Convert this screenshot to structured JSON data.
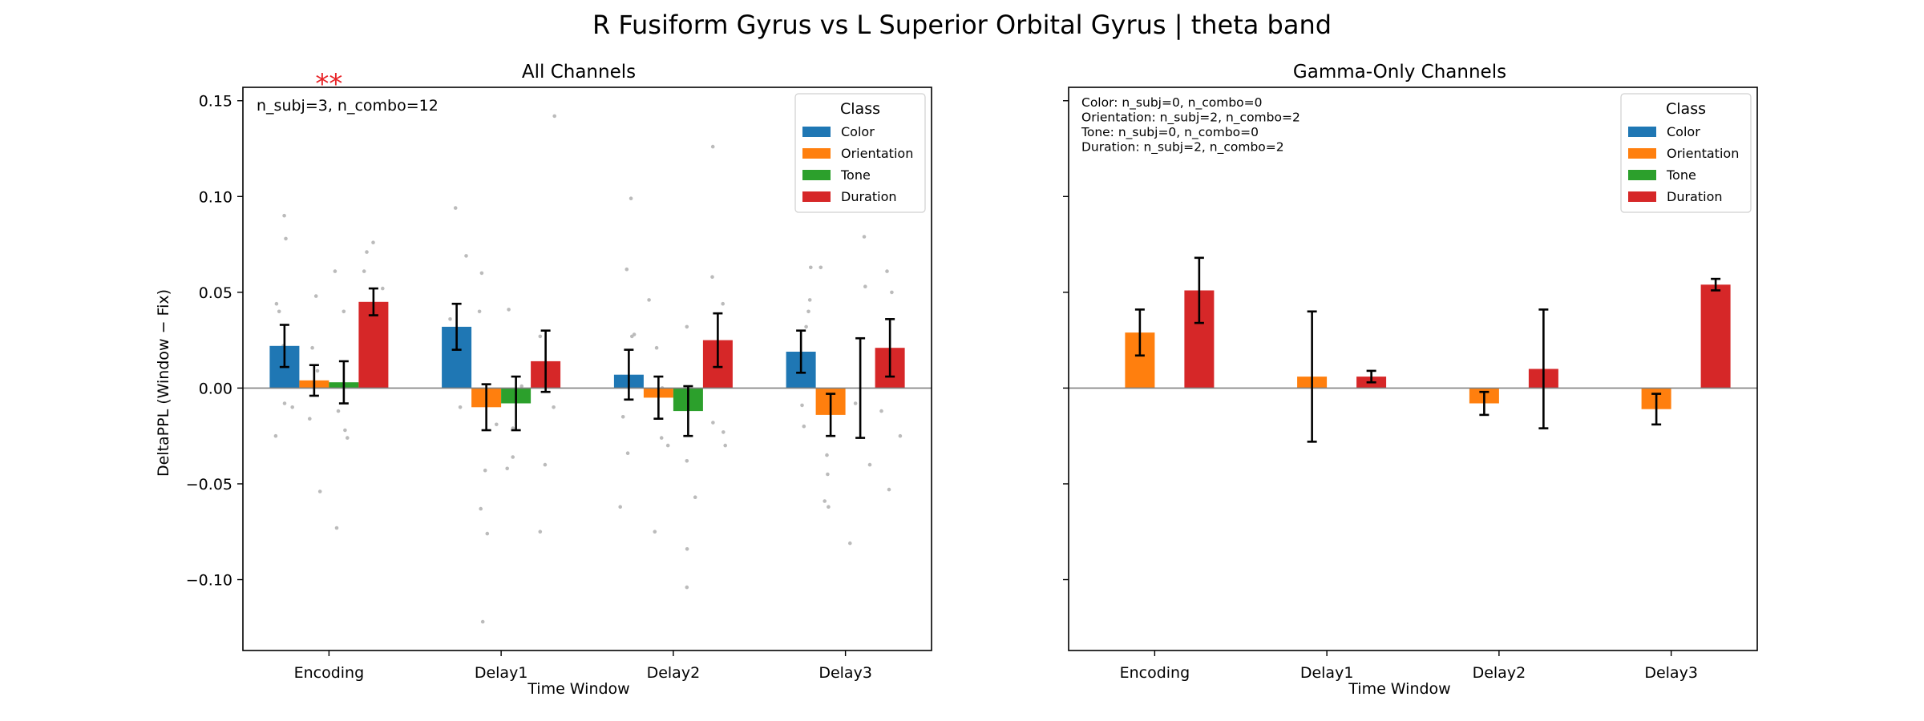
{
  "figure": {
    "suptitle": "R Fusiform Gyrus vs L Superior Orbital Gyrus  |  theta band"
  },
  "colors": {
    "Color": "#1f77b4",
    "Orientation": "#ff7f0e",
    "Tone": "#2ca02c",
    "Duration": "#d62728",
    "significance": "#e8262a",
    "scatter": "#bbbbbb",
    "zero_line": "#808080"
  },
  "chart_data": [
    {
      "type": "bar",
      "title": "All Channels",
      "xlabel": "Time Window",
      "ylabel": "DeltaPPL (Window − Fix)",
      "categories": [
        "Encoding",
        "Delay1",
        "Delay2",
        "Delay3"
      ],
      "ylim": [
        -0.137,
        0.157
      ],
      "yticks": [
        -0.1,
        -0.05,
        0.0,
        0.05,
        0.1,
        0.15
      ],
      "ytick_labels": [
        "−0.10",
        "−0.05",
        "0.00",
        "0.05",
        "0.10",
        "0.15"
      ],
      "show_ytick_labels": true,
      "grid": false,
      "legend": {
        "title": "Class",
        "placement": "top-right"
      },
      "annotation_lines": [
        "n_subj=3, n_combo=12"
      ],
      "annotation_size": "large",
      "significance": [
        {
          "category": "Encoding",
          "text": "**",
          "y": 0.16
        }
      ],
      "series": [
        {
          "name": "Color",
          "values": [
            0.022,
            0.032,
            0.007,
            0.019
          ],
          "err": [
            0.011,
            0.012,
            0.013,
            0.011
          ]
        },
        {
          "name": "Orientation",
          "values": [
            0.004,
            -0.01,
            -0.005,
            -0.014
          ],
          "err": [
            0.008,
            0.012,
            0.011,
            0.011
          ]
        },
        {
          "name": "Tone",
          "values": [
            0.003,
            -0.008,
            -0.012,
            null
          ],
          "err": [
            0.011,
            0.014,
            0.013,
            0.026
          ],
          "err_center": [
            0.003,
            -0.008,
            -0.012,
            0.0
          ]
        },
        {
          "name": "Duration",
          "values": [
            0.045,
            0.014,
            0.025,
            0.021
          ],
          "err": [
            0.007,
            0.016,
            0.014,
            0.015
          ]
        }
      ],
      "scatter_points": [
        {
          "c": 0,
          "s": 0,
          "y": 0.09
        },
        {
          "c": 0,
          "s": 0,
          "y": 0.078
        },
        {
          "c": 0,
          "s": 0,
          "y": 0.044
        },
        {
          "c": 0,
          "s": 0,
          "y": 0.04
        },
        {
          "c": 0,
          "s": 0,
          "y": 0.022
        },
        {
          "c": 0,
          "s": 0,
          "y": -0.008
        },
        {
          "c": 0,
          "s": 0,
          "y": -0.025
        },
        {
          "c": 0,
          "s": 0,
          "y": -0.01
        },
        {
          "c": 0,
          "s": 1,
          "y": 0.048
        },
        {
          "c": 0,
          "s": 1,
          "y": 0.021
        },
        {
          "c": 0,
          "s": 1,
          "y": -0.016
        },
        {
          "c": 0,
          "s": 1,
          "y": -0.054
        },
        {
          "c": 0,
          "s": 1,
          "y": 0.009
        },
        {
          "c": 0,
          "s": 2,
          "y": 0.061
        },
        {
          "c": 0,
          "s": 2,
          "y": 0.04
        },
        {
          "c": 0,
          "s": 2,
          "y": -0.012
        },
        {
          "c": 0,
          "s": 2,
          "y": -0.026
        },
        {
          "c": 0,
          "s": 2,
          "y": -0.073
        },
        {
          "c": 0,
          "s": 2,
          "y": -0.022
        },
        {
          "c": 0,
          "s": 3,
          "y": 0.076
        },
        {
          "c": 0,
          "s": 3,
          "y": 0.071
        },
        {
          "c": 0,
          "s": 3,
          "y": 0.061
        },
        {
          "c": 0,
          "s": 3,
          "y": 0.052
        },
        {
          "c": 0,
          "s": 3,
          "y": 0.036
        },
        {
          "c": 0,
          "s": 3,
          "y": 0.02
        },
        {
          "c": 1,
          "s": 0,
          "y": 0.094
        },
        {
          "c": 1,
          "s": 0,
          "y": 0.069
        },
        {
          "c": 1,
          "s": 0,
          "y": 0.036
        },
        {
          "c": 1,
          "s": 0,
          "y": 0.025
        },
        {
          "c": 1,
          "s": 0,
          "y": 0.003
        },
        {
          "c": 1,
          "s": 0,
          "y": -0.01
        },
        {
          "c": 1,
          "s": 1,
          "y": 0.06
        },
        {
          "c": 1,
          "s": 1,
          "y": 0.04
        },
        {
          "c": 1,
          "s": 1,
          "y": -0.019
        },
        {
          "c": 1,
          "s": 1,
          "y": -0.043
        },
        {
          "c": 1,
          "s": 1,
          "y": -0.063
        },
        {
          "c": 1,
          "s": 1,
          "y": -0.076
        },
        {
          "c": 1,
          "s": 1,
          "y": -0.122
        },
        {
          "c": 1,
          "s": 2,
          "y": 0.041
        },
        {
          "c": 1,
          "s": 2,
          "y": 0.001
        },
        {
          "c": 1,
          "s": 2,
          "y": -0.021
        },
        {
          "c": 1,
          "s": 2,
          "y": -0.036
        },
        {
          "c": 1,
          "s": 2,
          "y": -0.042
        },
        {
          "c": 1,
          "s": 3,
          "y": 0.142
        },
        {
          "c": 1,
          "s": 3,
          "y": 0.027
        },
        {
          "c": 1,
          "s": 3,
          "y": -0.01
        },
        {
          "c": 1,
          "s": 3,
          "y": -0.04
        },
        {
          "c": 1,
          "s": 3,
          "y": -0.075
        },
        {
          "c": 2,
          "s": 0,
          "y": 0.099
        },
        {
          "c": 2,
          "s": 0,
          "y": 0.062
        },
        {
          "c": 2,
          "s": 0,
          "y": 0.028
        },
        {
          "c": 2,
          "s": 0,
          "y": 0.027
        },
        {
          "c": 2,
          "s": 0,
          "y": 0.006
        },
        {
          "c": 2,
          "s": 0,
          "y": -0.015
        },
        {
          "c": 2,
          "s": 0,
          "y": -0.034
        },
        {
          "c": 2,
          "s": 0,
          "y": -0.062
        },
        {
          "c": 2,
          "s": 1,
          "y": 0.046
        },
        {
          "c": 2,
          "s": 1,
          "y": 0.021
        },
        {
          "c": 2,
          "s": 1,
          "y": 0.0
        },
        {
          "c": 2,
          "s": 1,
          "y": -0.026
        },
        {
          "c": 2,
          "s": 1,
          "y": -0.03
        },
        {
          "c": 2,
          "s": 1,
          "y": -0.075
        },
        {
          "c": 2,
          "s": 2,
          "y": 0.032
        },
        {
          "c": 2,
          "s": 2,
          "y": -0.008
        },
        {
          "c": 2,
          "s": 2,
          "y": -0.038
        },
        {
          "c": 2,
          "s": 2,
          "y": -0.057
        },
        {
          "c": 2,
          "s": 2,
          "y": -0.084
        },
        {
          "c": 2,
          "s": 2,
          "y": -0.104
        },
        {
          "c": 2,
          "s": 3,
          "y": 0.126
        },
        {
          "c": 2,
          "s": 3,
          "y": 0.058
        },
        {
          "c": 2,
          "s": 3,
          "y": 0.044
        },
        {
          "c": 2,
          "s": 3,
          "y": 0.003
        },
        {
          "c": 2,
          "s": 3,
          "y": -0.018
        },
        {
          "c": 2,
          "s": 3,
          "y": -0.023
        },
        {
          "c": 2,
          "s": 3,
          "y": -0.03
        },
        {
          "c": 3,
          "s": 0,
          "y": 0.063
        },
        {
          "c": 3,
          "s": 0,
          "y": 0.046
        },
        {
          "c": 3,
          "s": 0,
          "y": 0.04
        },
        {
          "c": 3,
          "s": 0,
          "y": 0.032
        },
        {
          "c": 3,
          "s": 0,
          "y": -0.02
        },
        {
          "c": 3,
          "s": 0,
          "y": -0.009
        },
        {
          "c": 3,
          "s": 1,
          "y": 0.063
        },
        {
          "c": 3,
          "s": 1,
          "y": -0.035
        },
        {
          "c": 3,
          "s": 1,
          "y": -0.045
        },
        {
          "c": 3,
          "s": 1,
          "y": -0.059
        },
        {
          "c": 3,
          "s": 1,
          "y": -0.062
        },
        {
          "c": 3,
          "s": 2,
          "y": 0.079
        },
        {
          "c": 3,
          "s": 2,
          "y": 0.053
        },
        {
          "c": 3,
          "s": 2,
          "y": -0.008
        },
        {
          "c": 3,
          "s": 2,
          "y": -0.04
        },
        {
          "c": 3,
          "s": 2,
          "y": -0.081
        },
        {
          "c": 3,
          "s": 3,
          "y": 0.061
        },
        {
          "c": 3,
          "s": 3,
          "y": 0.05
        },
        {
          "c": 3,
          "s": 3,
          "y": 0.001
        },
        {
          "c": 3,
          "s": 3,
          "y": -0.012
        },
        {
          "c": 3,
          "s": 3,
          "y": -0.025
        },
        {
          "c": 3,
          "s": 3,
          "y": -0.053
        }
      ]
    },
    {
      "type": "bar",
      "title": "Gamma-Only Channels",
      "xlabel": "Time Window",
      "ylabel": "",
      "categories": [
        "Encoding",
        "Delay1",
        "Delay2",
        "Delay3"
      ],
      "ylim": [
        -0.137,
        0.157
      ],
      "yticks": [
        -0.1,
        -0.05,
        0.0,
        0.05,
        0.1,
        0.15
      ],
      "ytick_labels": [],
      "show_ytick_labels": false,
      "grid": false,
      "legend": {
        "title": "Class",
        "placement": "top-right"
      },
      "annotation_lines": [
        "Color: n_subj=0, n_combo=0",
        "Orientation: n_subj=2, n_combo=2",
        "Tone: n_subj=0, n_combo=0",
        "Duration: n_subj=2, n_combo=2"
      ],
      "annotation_size": "small",
      "significance": [],
      "series": [
        {
          "name": "Color",
          "values": [
            null,
            null,
            null,
            null
          ],
          "err": [
            null,
            null,
            null,
            null
          ]
        },
        {
          "name": "Orientation",
          "values": [
            0.029,
            0.006,
            -0.008,
            -0.011
          ],
          "err": [
            0.012,
            0.034,
            0.006,
            0.008
          ]
        },
        {
          "name": "Tone",
          "values": [
            null,
            null,
            null,
            null
          ],
          "err": [
            null,
            null,
            null,
            null
          ]
        },
        {
          "name": "Duration",
          "values": [
            0.051,
            0.006,
            0.01,
            0.054
          ],
          "err": [
            0.017,
            0.003,
            0.031,
            0.003
          ]
        }
      ],
      "scatter_points": []
    }
  ]
}
